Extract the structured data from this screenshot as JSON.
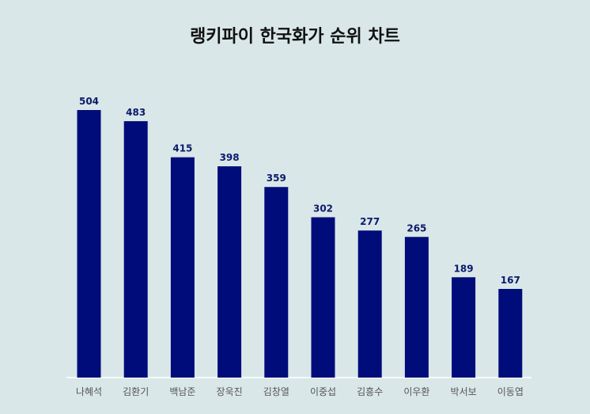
{
  "chart_data": {
    "type": "bar",
    "title": "랭키파이 한국화가 순위 차트",
    "categories": [
      "나혜석",
      "김환기",
      "백남준",
      "장욱진",
      "김창열",
      "이중섭",
      "김흥수",
      "이우환",
      "박서보",
      "이동엽"
    ],
    "values": [
      504,
      483,
      415,
      398,
      359,
      302,
      277,
      265,
      189,
      167
    ],
    "xlabel": "",
    "ylabel": "",
    "ylim": [
      0,
      504
    ],
    "grid": false,
    "legend": "none",
    "bar_color": "#000c7a"
  }
}
